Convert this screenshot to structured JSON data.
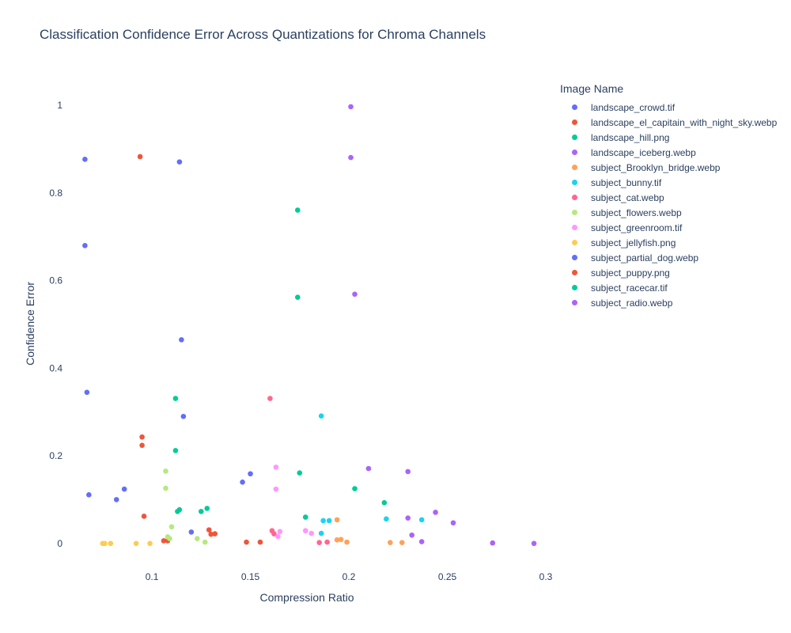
{
  "chart_data": {
    "type": "scatter",
    "title": "Classification Confidence Error Across Quantizations for Chroma Channels",
    "xlabel": "Compression Ratio",
    "ylabel": "Confidence Error",
    "xlim": [
      0.055,
      0.3
    ],
    "ylim": [
      -0.06,
      1.06
    ],
    "xticks": [
      0.1,
      0.15,
      0.2,
      0.25,
      0.3
    ],
    "xtick_labels": [
      "0.1",
      "0.15",
      "0.2",
      "0.25",
      "0.3"
    ],
    "yticks": [
      0,
      0.2,
      0.4,
      0.6,
      0.8,
      1
    ],
    "ytick_labels": [
      "0",
      "0.2",
      "0.4",
      "0.6",
      "0.8",
      "1"
    ],
    "grid": false,
    "legend_title": "Image Name",
    "legend_position": "right",
    "series": [
      {
        "name": "landscape_crowd.tif",
        "color": "#636efa",
        "points": [
          [
            0.066,
            0.877
          ],
          [
            0.066,
            0.68
          ],
          [
            0.067,
            0.345
          ],
          [
            0.068,
            0.111
          ],
          [
            0.082,
            0.1
          ],
          [
            0.086,
            0.124
          ],
          [
            0.114,
            0.871
          ],
          [
            0.115,
            0.465
          ],
          [
            0.116,
            0.29
          ],
          [
            0.12,
            0.026
          ],
          [
            0.146,
            0.14
          ],
          [
            0.15,
            0.159
          ]
        ]
      },
      {
        "name": "landscape_el_capitain_with_night_sky.webp",
        "color": "#EF553B",
        "points": [
          [
            0.094,
            0.883
          ],
          [
            0.095,
            0.243
          ],
          [
            0.095,
            0.224
          ],
          [
            0.096,
            0.062
          ],
          [
            0.106,
            0.006
          ],
          [
            0.108,
            0.006
          ],
          [
            0.129,
            0.031
          ],
          [
            0.13,
            0.021
          ],
          [
            0.132,
            0.022
          ],
          [
            0.148,
            0.003
          ],
          [
            0.155,
            0.003
          ]
        ]
      },
      {
        "name": "landscape_hill.png",
        "color": "#00cc96",
        "points": [
          [
            0.112,
            0.331
          ],
          [
            0.112,
            0.212
          ],
          [
            0.113,
            0.073
          ],
          [
            0.114,
            0.077
          ],
          [
            0.125,
            0.073
          ],
          [
            0.128,
            0.08
          ],
          [
            0.174,
            0.761
          ],
          [
            0.174,
            0.562
          ],
          [
            0.175,
            0.161
          ],
          [
            0.178,
            0.06
          ],
          [
            0.203,
            0.125
          ],
          [
            0.218,
            0.093
          ]
        ]
      },
      {
        "name": "landscape_iceberg.webp",
        "color": "#ab63fa",
        "points": [
          [
            0.201,
            0.997
          ],
          [
            0.201,
            0.881
          ],
          [
            0.203,
            0.569
          ],
          [
            0.21,
            0.171
          ]
        ]
      },
      {
        "name": "subject_Brooklyn_bridge.webp",
        "color": "#FFA15A",
        "points": [
          [
            0.194,
            0.054
          ],
          [
            0.194,
            0.008
          ],
          [
            0.196,
            0.009
          ],
          [
            0.199,
            0.003
          ],
          [
            0.221,
            0.002
          ],
          [
            0.227,
            0.002
          ]
        ]
      },
      {
        "name": "subject_bunny.tif",
        "color": "#19d3f3",
        "points": [
          [
            0.186,
            0.291
          ],
          [
            0.186,
            0.023
          ],
          [
            0.187,
            0.052
          ],
          [
            0.19,
            0.052
          ],
          [
            0.219,
            0.056
          ],
          [
            0.237,
            0.054
          ]
        ]
      },
      {
        "name": "subject_cat.webp",
        "color": "#FF6692",
        "points": [
          [
            0.16,
            0.331
          ],
          [
            0.161,
            0.029
          ],
          [
            0.162,
            0.022
          ],
          [
            0.185,
            0.002
          ],
          [
            0.189,
            0.003
          ]
        ]
      },
      {
        "name": "subject_flowers.webp",
        "color": "#B6E880",
        "points": [
          [
            0.107,
            0.165
          ],
          [
            0.107,
            0.126
          ],
          [
            0.108,
            0.015
          ],
          [
            0.109,
            0.011
          ],
          [
            0.11,
            0.038
          ],
          [
            0.123,
            0.011
          ],
          [
            0.127,
            0.003
          ]
        ]
      },
      {
        "name": "subject_greenroom.tif",
        "color": "#FF97FF",
        "points": [
          [
            0.163,
            0.174
          ],
          [
            0.163,
            0.124
          ],
          [
            0.164,
            0.016
          ],
          [
            0.165,
            0.027
          ],
          [
            0.178,
            0.029
          ],
          [
            0.181,
            0.023
          ]
        ]
      },
      {
        "name": "subject_jellyfish.png",
        "color": "#FECB52",
        "points": [
          [
            0.075,
            0.0
          ],
          [
            0.076,
            0.0
          ],
          [
            0.079,
            0.0
          ],
          [
            0.092,
            0.0
          ],
          [
            0.099,
            0.0
          ]
        ]
      },
      {
        "name": "subject_partial_dog.webp",
        "color": "#636efa",
        "points": []
      },
      {
        "name": "subject_puppy.png",
        "color": "#EF553B",
        "points": []
      },
      {
        "name": "subject_racecar.tif",
        "color": "#00cc96",
        "points": []
      },
      {
        "name": "subject_radio.webp",
        "color": "#ab63fa",
        "points": [
          [
            0.23,
            0.164
          ],
          [
            0.23,
            0.058
          ],
          [
            0.232,
            0.019
          ],
          [
            0.237,
            0.004
          ],
          [
            0.244,
            0.071
          ],
          [
            0.253,
            0.047
          ],
          [
            0.273,
            0.001
          ],
          [
            0.294,
            0.0
          ]
        ]
      }
    ]
  }
}
